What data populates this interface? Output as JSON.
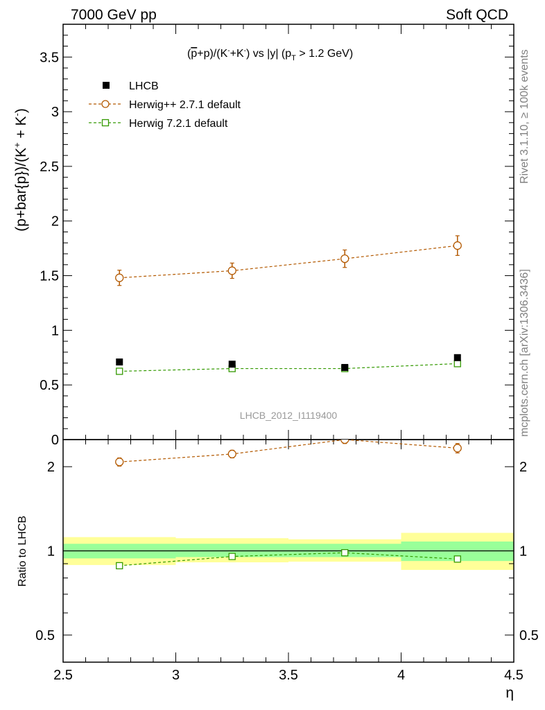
{
  "header": {
    "left": "7000 GeV pp",
    "right": "Soft QCD"
  },
  "side": {
    "rivet": "Rivet 3.1.10, ≥ 100k events",
    "mcplots": "mcplots.cern.ch [arXiv:1306.3436]"
  },
  "plot_title": {
    "p1": "(",
    "p2": "p",
    "p3": "+p)/(K",
    "p4": "-",
    "p5": "+K",
    "p6": "-",
    "p7": ") vs |y| (p",
    "p8": "T",
    "p9": " > 1.2 GeV)"
  },
  "analysis_id": "LHCB_2012_I1119400",
  "ylabel_top": {
    "a": "(p+bar{p})/(K",
    "b": "+",
    "c": " + K",
    "d": "-",
    "e": ")"
  },
  "ylabel_bottom": "Ratio to LHCB",
  "xlabel": "η",
  "colors": {
    "data": "#000000",
    "herwigpp": "#b35900",
    "herwig7": "#339900",
    "band_inner": "#99ff99",
    "band_outer": "#ffff99"
  },
  "chart_data": [
    {
      "type": "scatter",
      "panel": "main",
      "xlim": [
        2.5,
        4.5
      ],
      "ylim": [
        0,
        3.8
      ],
      "x_ticks": [
        "2.5",
        "3",
        "3.5",
        "4",
        "4.5"
      ],
      "y_ticks": [
        "0",
        "0.5",
        "1",
        "1.5",
        "2",
        "2.5",
        "3",
        "3.5"
      ],
      "x": [
        2.75,
        3.25,
        3.75,
        4.25
      ],
      "series": [
        {
          "name": "LHCB",
          "marker": "filled-square",
          "values": [
            0.71,
            0.69,
            0.66,
            0.75
          ],
          "errors": [
            0.01,
            0.01,
            0.01,
            0.01
          ]
        },
        {
          "name": "Herwig++ 2.7.1 default",
          "marker": "open-circle",
          "line": "dashed",
          "values": [
            1.48,
            1.545,
            1.655,
            1.775
          ],
          "errors": [
            0.07,
            0.07,
            0.08,
            0.09
          ]
        },
        {
          "name": "Herwig 7.2.1 default",
          "marker": "open-square",
          "line": "dashed",
          "values": [
            0.625,
            0.65,
            0.65,
            0.695
          ],
          "errors": [
            0.015,
            0.015,
            0.015,
            0.015
          ]
        }
      ],
      "legend": "top-left"
    },
    {
      "type": "scatter",
      "panel": "ratio",
      "scale": "log",
      "xlim": [
        2.5,
        4.5
      ],
      "ylim": [
        0.4,
        2.5
      ],
      "y_ticks": [
        "0.5",
        "1",
        "2"
      ],
      "bins": [
        [
          2.5,
          3.0
        ],
        [
          3.0,
          3.5
        ],
        [
          3.5,
          4.0
        ],
        [
          4.0,
          4.5
        ]
      ],
      "band_inner": [
        [
          0.94,
          1.06
        ],
        [
          0.95,
          1.06
        ],
        [
          0.95,
          1.06
        ],
        [
          0.92,
          1.08
        ]
      ],
      "band_outer": [
        [
          0.89,
          1.12
        ],
        [
          0.91,
          1.11
        ],
        [
          0.915,
          1.1
        ],
        [
          0.855,
          1.16
        ]
      ],
      "x": [
        2.75,
        3.25,
        3.75,
        4.25
      ],
      "series": [
        {
          "name": "Herwig++ 2.7.1 default",
          "values": [
            2.08,
            2.22,
            2.5,
            2.33
          ],
          "errors": [
            0.07,
            0.07,
            0.08,
            0.09
          ]
        },
        {
          "name": "Herwig 7.2.1 default",
          "values": [
            0.885,
            0.955,
            0.985,
            0.935
          ],
          "errors": [
            0.02,
            0.02,
            0.02,
            0.02
          ]
        }
      ]
    }
  ]
}
